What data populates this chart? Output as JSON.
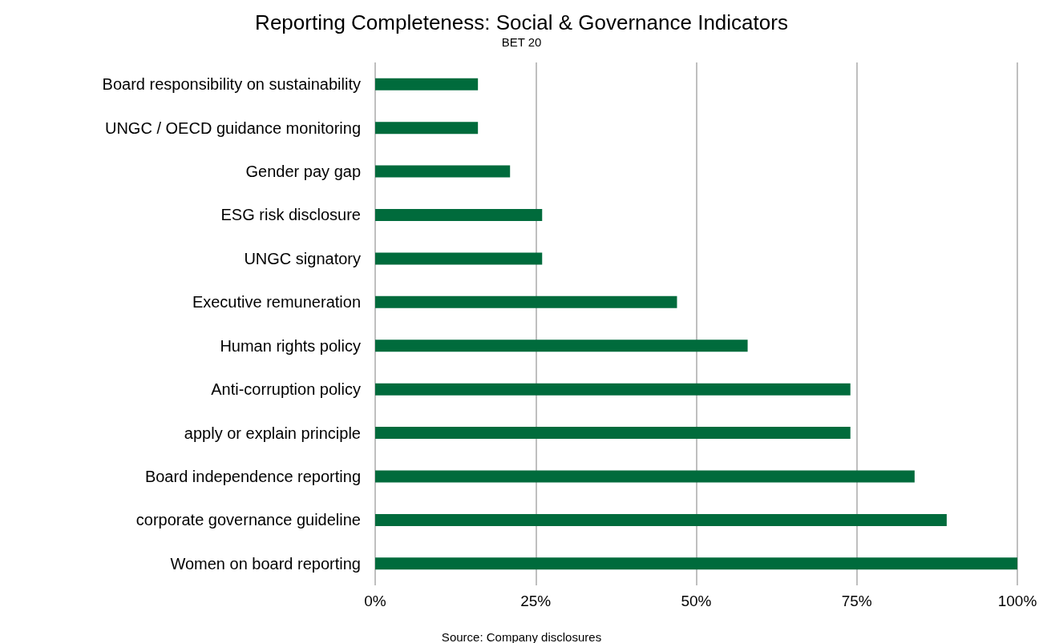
{
  "chart_data": {
    "type": "bar",
    "orientation": "horizontal",
    "title": "Reporting Completeness: Social & Governance Indicators",
    "subtitle": "BET 20",
    "categories": [
      "Board responsibility on sustainability",
      "UNGC / OECD guidance monitoring",
      "Gender pay gap",
      "ESG risk disclosure",
      "UNGC signatory",
      "Executive remuneration",
      "Human rights policy",
      "Anti-corruption policy",
      "apply or explain principle",
      "Board independence reporting",
      "corporate governance guideline",
      "Women on board reporting"
    ],
    "values": [
      16,
      16,
      21,
      26,
      26,
      47,
      58,
      74,
      74,
      84,
      89,
      100
    ],
    "color": "#006b3c",
    "xlim": [
      0,
      100
    ],
    "xticks": [
      {
        "value": 0,
        "label": "0%"
      },
      {
        "value": 25,
        "label": "25%"
      },
      {
        "value": 50,
        "label": "50%"
      },
      {
        "value": 75,
        "label": "75%"
      },
      {
        "value": 100,
        "label": "100%"
      }
    ],
    "grid": "x",
    "annotations": [
      "Source: Company disclosures"
    ]
  }
}
